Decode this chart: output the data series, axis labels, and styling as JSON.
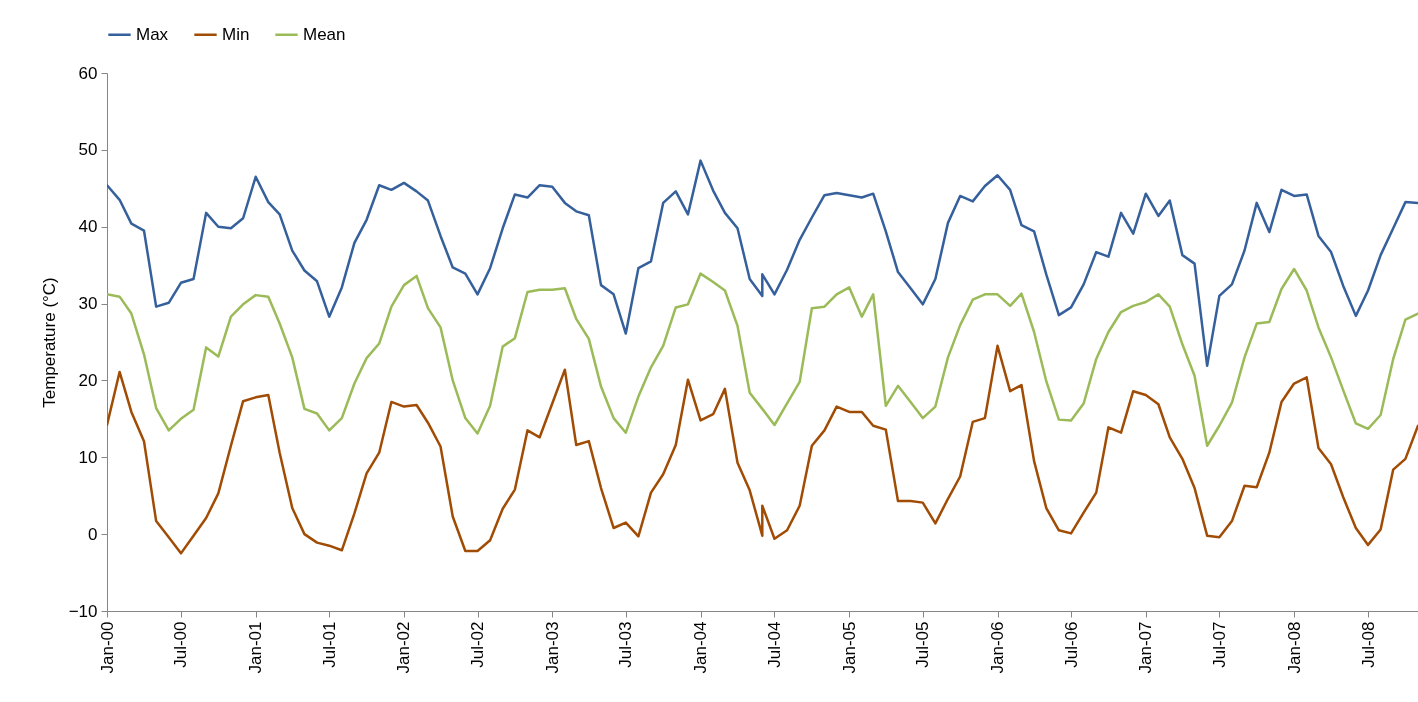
{
  "chart_data": {
    "type": "line",
    "ylabel": "Temperature (°C)",
    "legend": "top",
    "x": [
      "2000-01",
      "2000-02",
      "2000-03",
      "2000-04",
      "2000-05",
      "2000-06",
      "2000-07",
      "2000-08",
      "2000-09",
      "2000-10",
      "2000-11",
      "2000-12",
      "2001-01",
      "2001-02",
      "2001-03",
      "2001-04",
      "2001-05",
      "2001-06",
      "2001-07",
      "2001-08",
      "2001-09",
      "2001-10",
      "2001-11",
      "2001-12",
      "2002-01",
      "2002-02",
      "2002-03",
      "2002-04",
      "2002-05",
      "2002-06",
      "2002-07",
      "2002-08",
      "2002-09",
      "2002-10",
      "2002-11",
      "2002-12",
      "2003-01",
      "2003-02",
      "2003-03",
      "2003-04",
      "2003-05",
      "2003-06",
      "2003-07",
      "2003-08",
      "2003-09",
      "2003-10",
      "2003-11",
      "2003-12",
      "2004-01",
      "2004-02",
      "2004-03",
      "2004-04",
      "2004-05",
      "2004-06",
      "2004-06",
      "2004-07",
      "2004-08",
      "2004-09",
      "2004-10",
      "2004-11",
      "2004-12",
      "2005-01",
      "2005-02",
      "2005-03",
      "2005-04",
      "2005-05",
      "2005-06",
      "2005-07",
      "2005-08",
      "2005-09",
      "2005-10",
      "2005-11",
      "2005-12",
      "2006-01",
      "2006-02",
      "2006-03",
      "2006-04",
      "2006-05",
      "2006-06",
      "2006-07",
      "2006-08",
      "2006-09",
      "2006-10",
      "2006-11",
      "2006-12",
      "2007-01",
      "2007-02",
      "2007-03",
      "2007-04",
      "2007-05",
      "2007-06",
      "2007-07",
      "2007-08",
      "2007-09",
      "2007-10",
      "2007-11",
      "2007-12",
      "2008-01",
      "2008-02",
      "2008-03",
      "2008-04",
      "2008-05",
      "2008-06",
      "2008-07",
      "2008-08",
      "2008-09",
      "2008-10",
      "2008-11"
    ],
    "series": [
      {
        "name": "Max",
        "color": "#36609c",
        "values": [
          45.4,
          43.5,
          40.4,
          39.5,
          29.6,
          30.1,
          32.7,
          33.2,
          41.8,
          40.0,
          39.8,
          41.1,
          46.5,
          43.2,
          41.6,
          36.9,
          34.3,
          32.9,
          28.3,
          32.1,
          37.9,
          40.9,
          45.4,
          44.8,
          45.7,
          44.6,
          43.4,
          38.8,
          34.7,
          33.9,
          31.2,
          34.6,
          39.8,
          44.2,
          43.8,
          45.4,
          45.2,
          43.1,
          42.0,
          41.5,
          32.4,
          31.2,
          26.1,
          34.6,
          35.5,
          43.1,
          44.6,
          41.6,
          48.6,
          44.7,
          41.8,
          39.8,
          33.2,
          31.0,
          33.8,
          31.2,
          34.4,
          38.3,
          41.2,
          44.1,
          44.4,
          44.1,
          43.8,
          44.3,
          39.4,
          34.1,
          32.0,
          29.9,
          33.2,
          40.5,
          44.0,
          43.3,
          45.3,
          46.7,
          44.8,
          40.2,
          39.4,
          33.8,
          28.5,
          29.5,
          32.5,
          36.7,
          36.1,
          41.8,
          39.1,
          44.3,
          41.4,
          43.4,
          36.3,
          35.2,
          21.9,
          31.0,
          32.5,
          36.9,
          43.1,
          39.3,
          44.8,
          44.0,
          44.2,
          38.8,
          36.7,
          32.3,
          28.4,
          31.7,
          36.3,
          39.8,
          43.2,
          43.1
        ]
      },
      {
        "name": "Min",
        "color": "#a14c05",
        "values": [
          14.2,
          21.1,
          15.9,
          12.1,
          1.7,
          -0.4,
          -2.5,
          -0.2,
          2.1,
          5.3,
          11.5,
          17.3,
          17.8,
          18.1,
          10.6,
          3.4,
          0.0,
          -1.1,
          -1.5,
          -2.1,
          2.7,
          7.9,
          10.6,
          17.2,
          16.6,
          16.8,
          14.5,
          11.4,
          2.3,
          -2.2,
          -2.2,
          -0.8,
          3.3,
          5.8,
          13.5,
          12.6,
          17.0,
          21.4,
          11.6,
          12.1,
          6.0,
          0.8,
          1.5,
          -0.3,
          5.4,
          7.8,
          11.6,
          20.1,
          14.8,
          15.6,
          18.9,
          9.3,
          5.7,
          -0.2,
          3.7,
          -0.6,
          0.5,
          3.7,
          11.5,
          13.5,
          16.6,
          15.9,
          15.9,
          14.1,
          13.6,
          4.3,
          4.3,
          4.1,
          1.4,
          4.6,
          7.5,
          14.6,
          15.1,
          24.5,
          18.6,
          19.4,
          9.5,
          3.4,
          0.5,
          0.1,
          2.8,
          5.4,
          13.9,
          13.2,
          18.6,
          18.1,
          16.9,
          12.6,
          9.8,
          6.0,
          -0.2,
          -0.4,
          1.7,
          6.3,
          6.1,
          10.6,
          17.2,
          19.6,
          20.4,
          11.2,
          9.1,
          4.8,
          0.8,
          -1.4,
          0.6,
          8.4,
          9.8,
          14.1
        ]
      },
      {
        "name": "Mean",
        "color": "#9bbb59",
        "values": [
          31.2,
          30.9,
          28.7,
          23.4,
          16.4,
          13.5,
          15.0,
          16.2,
          24.3,
          23.1,
          28.3,
          29.9,
          31.1,
          30.9,
          27.4,
          23.0,
          16.3,
          15.7,
          13.5,
          15.1,
          19.6,
          22.9,
          24.8,
          29.6,
          32.4,
          33.6,
          29.4,
          26.9,
          20.0,
          15.1,
          13.1,
          16.7,
          24.4,
          25.5,
          31.5,
          31.8,
          31.8,
          32.0,
          28.0,
          25.4,
          19.2,
          15.1,
          13.2,
          17.9,
          21.7,
          24.5,
          29.5,
          29.9,
          33.9,
          32.8,
          31.7,
          27.1,
          18.4,
          16.3,
          16.3,
          14.2,
          17.0,
          19.8,
          29.4,
          29.6,
          31.2,
          32.1,
          28.3,
          31.2,
          16.7,
          19.3,
          17.2,
          15.1,
          16.6,
          23.0,
          27.2,
          30.5,
          31.2,
          31.2,
          29.7,
          31.3,
          26.3,
          19.9,
          14.9,
          14.8,
          17.0,
          22.8,
          26.3,
          28.9,
          29.7,
          30.2,
          31.2,
          29.6,
          24.7,
          20.6,
          11.5,
          14.1,
          17.1,
          23.0,
          27.4,
          27.6,
          31.9,
          34.5,
          31.7,
          26.9,
          23.0,
          18.7,
          14.4,
          13.7,
          15.5,
          22.8,
          27.9,
          28.7
        ]
      }
    ],
    "xlim": [
      "2000-01",
      "2008-11"
    ],
    "xticks": [
      {
        "value": "2000-01",
        "label": "Jan-00"
      },
      {
        "value": "2000-07",
        "label": "Jul-00"
      },
      {
        "value": "2001-01",
        "label": "Jan-01"
      },
      {
        "value": "2001-07",
        "label": "Jul-01"
      },
      {
        "value": "2002-01",
        "label": "Jan-02"
      },
      {
        "value": "2002-07",
        "label": "Jul-02"
      },
      {
        "value": "2003-01",
        "label": "Jan-03"
      },
      {
        "value": "2003-07",
        "label": "Jul-03"
      },
      {
        "value": "2004-01",
        "label": "Jan-04"
      },
      {
        "value": "2004-07",
        "label": "Jul-04"
      },
      {
        "value": "2005-01",
        "label": "Jan-05"
      },
      {
        "value": "2005-07",
        "label": "Jul-05"
      },
      {
        "value": "2006-01",
        "label": "Jan-06"
      },
      {
        "value": "2006-07",
        "label": "Jul-06"
      },
      {
        "value": "2007-01",
        "label": "Jan-07"
      },
      {
        "value": "2007-07",
        "label": "Jul-07"
      },
      {
        "value": "2008-01",
        "label": "Jan-08"
      },
      {
        "value": "2008-07",
        "label": "Jul-08"
      }
    ],
    "ylim": [
      -10,
      60
    ],
    "yticks": [
      -10,
      0,
      10,
      20,
      30,
      40,
      50,
      60
    ]
  }
}
